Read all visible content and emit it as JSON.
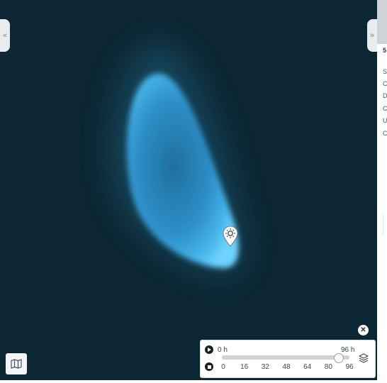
{
  "map": {
    "background": "#0c2733",
    "plume_colors": {
      "edge": "#6fd3ff",
      "mid": "#3aa6e0",
      "core": "#1e6f9e"
    }
  },
  "handles": {
    "left_glyph": "«",
    "right_glyph": "»"
  },
  "side_panel": {
    "title": "5",
    "lines": [
      "S",
      "C",
      "D",
      "C",
      "U",
      "C"
    ]
  },
  "marker": {
    "icon": "sun-pin-icon"
  },
  "map_type_button": {
    "icon": "map-icon"
  },
  "close_button": {
    "glyph": "✕"
  },
  "time_control": {
    "start_label": "0 h",
    "end_label": "96 h",
    "ticks": [
      "0",
      "16",
      "32",
      "48",
      "64",
      "80",
      "96"
    ],
    "tick_values": [
      0,
      16,
      32,
      48,
      64,
      80,
      96
    ],
    "range_max_hours": 96,
    "current_hours": 88,
    "play_icon": "play-icon",
    "stop_icon": "stop-icon",
    "layers_icon": "layers-icon"
  }
}
